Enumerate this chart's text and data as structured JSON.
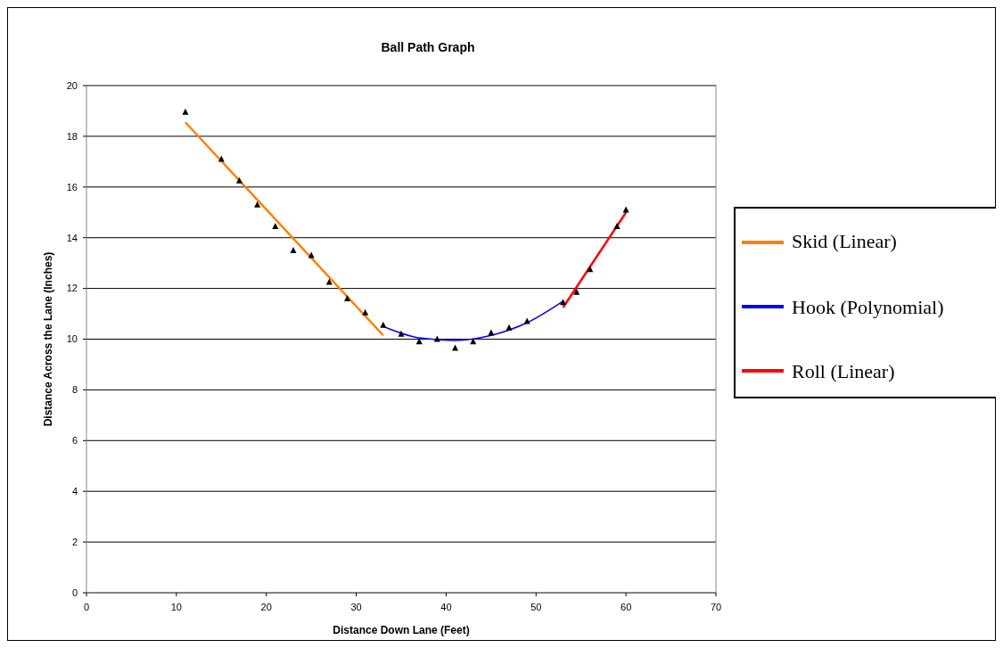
{
  "chart_data": {
    "type": "scatter",
    "title": "Ball Path Graph",
    "xlabel": "Distance Down Lane (Feet)",
    "ylabel": "Distance Across the Lane (Inches)",
    "xlim": [
      0,
      70
    ],
    "xticks": [
      0,
      10,
      20,
      30,
      40,
      50,
      60,
      70
    ],
    "ylim": [
      0,
      20
    ],
    "yticks": [
      0,
      2,
      4,
      6,
      8,
      10,
      12,
      14,
      16,
      18,
      20
    ],
    "grid": "y",
    "legend": "right",
    "series": [
      {
        "marker": "triangle",
        "color": "#000000",
        "x": [
          11,
          15,
          17,
          19,
          21,
          23,
          25,
          27,
          29,
          31,
          33,
          35,
          37,
          39,
          41,
          43,
          45,
          47,
          49,
          53,
          54.5,
          56,
          59,
          60
        ],
        "values": [
          18.95,
          17.1,
          16.25,
          15.3,
          14.45,
          13.5,
          13.3,
          12.25,
          11.6,
          11.05,
          10.55,
          10.2,
          9.9,
          10.0,
          9.65,
          9.9,
          10.25,
          10.45,
          10.7,
          11.45,
          11.85,
          12.75,
          14.45,
          15.1
        ]
      },
      {
        "type": "line",
        "marker": "none",
        "name": "Skid (Linear)",
        "color": "#ff7f00",
        "x": [
          11,
          33
        ],
        "values": [
          18.55,
          10.15
        ]
      },
      {
        "type": "line",
        "marker": "none",
        "name": "Hook (Polynomial)",
        "color": "#0000ff",
        "x": [
          33,
          37,
          41,
          45,
          49,
          53
        ],
        "values": [
          10.5,
          10.05,
          9.95,
          10.15,
          10.65,
          11.5
        ]
      },
      {
        "type": "line",
        "marker": "none",
        "name": "Roll (Linear)",
        "color": "#ff0000",
        "x": [
          53,
          60
        ],
        "values": [
          11.25,
          15.0
        ]
      }
    ]
  }
}
